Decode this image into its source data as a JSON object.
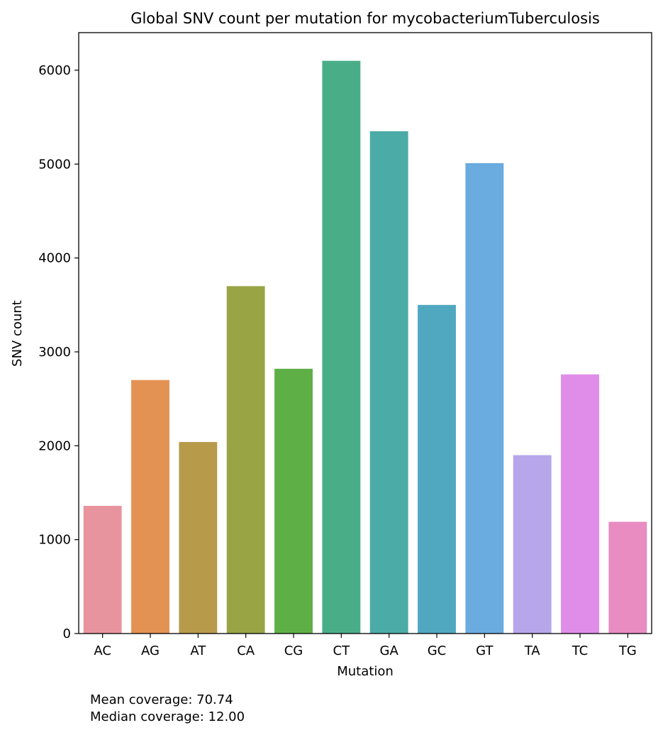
{
  "chart_data": {
    "type": "bar",
    "title": "Global SNV count per mutation for mycobacteriumTuberculosis",
    "xlabel": "Mutation",
    "ylabel": "SNV count",
    "categories": [
      "AC",
      "AG",
      "AT",
      "CA",
      "CG",
      "CT",
      "GA",
      "GC",
      "GT",
      "TA",
      "TC",
      "TG"
    ],
    "values": [
      1360,
      2700,
      2040,
      3700,
      2820,
      6100,
      5350,
      3500,
      5010,
      1900,
      2760,
      1190
    ],
    "colors": [
      "#e8949f",
      "#e39254",
      "#b89a4b",
      "#99a545",
      "#5eb046",
      "#49ae87",
      "#4baba6",
      "#4fa8bf",
      "#6aabe0",
      "#b7a6ea",
      "#df8de9",
      "#e88cc2"
    ],
    "ylim": [
      0,
      6400
    ],
    "yticks": [
      0,
      1000,
      2000,
      3000,
      4000,
      5000,
      6000
    ],
    "grid": false,
    "legend": "none"
  },
  "annotations": {
    "mean": "Mean coverage: 70.74",
    "median": "Median coverage: 12.00"
  }
}
